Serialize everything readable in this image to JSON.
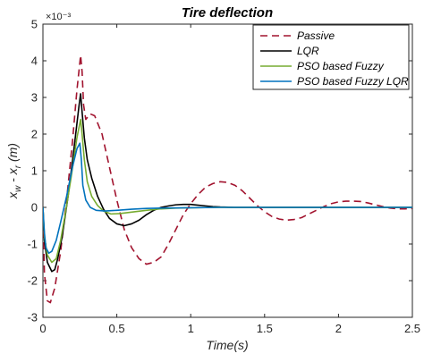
{
  "chart_data": {
    "type": "line",
    "title": "Tire deflection",
    "xlabel": "Time(s)",
    "ylabel": {
      "main_1": "x",
      "sub_1": "w",
      "mid": " - x",
      "sub_2": "r",
      "unit": " (m)"
    },
    "y_scale_label": "×10⁻³",
    "xlim": [
      0,
      2.5
    ],
    "ylim": [
      -3,
      5
    ],
    "x_ticks": [
      0,
      0.5,
      1,
      1.5,
      2,
      2.5
    ],
    "x_tick_labels": [
      "0",
      "0.5",
      "1",
      "1.5",
      "2",
      "2.5"
    ],
    "y_ticks": [
      -3,
      -2,
      -1,
      0,
      1,
      2,
      3,
      4,
      5
    ],
    "y_tick_labels": [
      "-3",
      "-2",
      "-1",
      "0",
      "1",
      "2",
      "3",
      "4",
      "5"
    ],
    "grid": false,
    "legend_position": "top-right",
    "series": [
      {
        "name": "Passive",
        "color": "#a2142f",
        "dash": "8,5",
        "points": [
          [
            0,
            0
          ],
          [
            0.01,
            -1.8
          ],
          [
            0.03,
            -2.55
          ],
          [
            0.05,
            -2.6
          ],
          [
            0.08,
            -2.2
          ],
          [
            0.12,
            -1.2
          ],
          [
            0.16,
            0.2
          ],
          [
            0.2,
            1.8
          ],
          [
            0.23,
            3.2
          ],
          [
            0.255,
            4.15
          ],
          [
            0.265,
            3.7
          ],
          [
            0.275,
            2.8
          ],
          [
            0.29,
            2.4
          ],
          [
            0.32,
            2.55
          ],
          [
            0.35,
            2.5
          ],
          [
            0.4,
            2.0
          ],
          [
            0.45,
            1.1
          ],
          [
            0.5,
            0.2
          ],
          [
            0.55,
            -0.6
          ],
          [
            0.6,
            -1.1
          ],
          [
            0.65,
            -1.4
          ],
          [
            0.7,
            -1.55
          ],
          [
            0.75,
            -1.5
          ],
          [
            0.8,
            -1.35
          ],
          [
            0.85,
            -1.0
          ],
          [
            0.9,
            -0.6
          ],
          [
            0.95,
            -0.2
          ],
          [
            1.0,
            0.1
          ],
          [
            1.05,
            0.35
          ],
          [
            1.1,
            0.55
          ],
          [
            1.15,
            0.65
          ],
          [
            1.2,
            0.7
          ],
          [
            1.25,
            0.68
          ],
          [
            1.3,
            0.6
          ],
          [
            1.35,
            0.45
          ],
          [
            1.4,
            0.25
          ],
          [
            1.45,
            0.05
          ],
          [
            1.5,
            -0.12
          ],
          [
            1.55,
            -0.25
          ],
          [
            1.6,
            -0.32
          ],
          [
            1.65,
            -0.35
          ],
          [
            1.7,
            -0.33
          ],
          [
            1.75,
            -0.28
          ],
          [
            1.8,
            -0.18
          ],
          [
            1.85,
            -0.08
          ],
          [
            1.9,
            0.02
          ],
          [
            1.95,
            0.1
          ],
          [
            2.0,
            0.15
          ],
          [
            2.05,
            0.17
          ],
          [
            2.1,
            0.17
          ],
          [
            2.15,
            0.16
          ],
          [
            2.2,
            0.12
          ],
          [
            2.25,
            0.07
          ],
          [
            2.3,
            0.02
          ],
          [
            2.35,
            -0.02
          ],
          [
            2.4,
            -0.04
          ],
          [
            2.45,
            -0.04
          ],
          [
            2.5,
            -0.03
          ]
        ]
      },
      {
        "name": "LQR",
        "color": "#000000",
        "dash": "",
        "points": [
          [
            0,
            0
          ],
          [
            0.01,
            -0.9
          ],
          [
            0.03,
            -1.5
          ],
          [
            0.06,
            -1.75
          ],
          [
            0.08,
            -1.7
          ],
          [
            0.1,
            -1.4
          ],
          [
            0.13,
            -0.8
          ],
          [
            0.17,
            0.3
          ],
          [
            0.21,
            1.6
          ],
          [
            0.245,
            2.8
          ],
          [
            0.255,
            3.1
          ],
          [
            0.265,
            2.6
          ],
          [
            0.28,
            1.9
          ],
          [
            0.3,
            1.3
          ],
          [
            0.33,
            0.8
          ],
          [
            0.37,
            0.3
          ],
          [
            0.41,
            -0.05
          ],
          [
            0.45,
            -0.3
          ],
          [
            0.5,
            -0.45
          ],
          [
            0.55,
            -0.5
          ],
          [
            0.6,
            -0.45
          ],
          [
            0.65,
            -0.35
          ],
          [
            0.7,
            -0.2
          ],
          [
            0.75,
            -0.08
          ],
          [
            0.8,
            0.0
          ],
          [
            0.85,
            0.04
          ],
          [
            0.9,
            0.07
          ],
          [
            0.95,
            0.08
          ],
          [
            1.0,
            0.08
          ],
          [
            1.05,
            0.06
          ],
          [
            1.1,
            0.04
          ],
          [
            1.15,
            0.02
          ],
          [
            1.2,
            0.01
          ],
          [
            1.3,
            0.0
          ],
          [
            1.5,
            0.0
          ],
          [
            2.5,
            0.0
          ]
        ]
      },
      {
        "name": "PSO based Fuzzy",
        "color": "#77ac30",
        "dash": "",
        "points": [
          [
            0,
            0
          ],
          [
            0.01,
            -0.8
          ],
          [
            0.03,
            -1.3
          ],
          [
            0.06,
            -1.5
          ],
          [
            0.09,
            -1.4
          ],
          [
            0.12,
            -0.9
          ],
          [
            0.15,
            -0.2
          ],
          [
            0.19,
            0.8
          ],
          [
            0.23,
            1.9
          ],
          [
            0.255,
            2.4
          ],
          [
            0.265,
            2.0
          ],
          [
            0.28,
            1.3
          ],
          [
            0.3,
            0.7
          ],
          [
            0.33,
            0.3
          ],
          [
            0.37,
            0.05
          ],
          [
            0.41,
            -0.1
          ],
          [
            0.46,
            -0.18
          ],
          [
            0.52,
            -0.17
          ],
          [
            0.6,
            -0.13
          ],
          [
            0.7,
            -0.08
          ],
          [
            0.8,
            -0.04
          ],
          [
            0.9,
            -0.02
          ],
          [
            1.0,
            -0.01
          ],
          [
            1.2,
            0.0
          ],
          [
            2.5,
            0.0
          ]
        ]
      },
      {
        "name": "PSO based Fuzzy LQR",
        "color": "#0072bd",
        "dash": "",
        "points": [
          [
            0,
            0
          ],
          [
            0.01,
            -0.7
          ],
          [
            0.02,
            -1.1
          ],
          [
            0.04,
            -1.25
          ],
          [
            0.06,
            -1.2
          ],
          [
            0.09,
            -0.9
          ],
          [
            0.12,
            -0.4
          ],
          [
            0.16,
            0.3
          ],
          [
            0.2,
            1.1
          ],
          [
            0.23,
            1.6
          ],
          [
            0.25,
            1.75
          ],
          [
            0.26,
            1.3
          ],
          [
            0.27,
            0.6
          ],
          [
            0.29,
            0.2
          ],
          [
            0.32,
            0.0
          ],
          [
            0.36,
            -0.08
          ],
          [
            0.42,
            -0.1
          ],
          [
            0.5,
            -0.08
          ],
          [
            0.6,
            -0.05
          ],
          [
            0.7,
            -0.03
          ],
          [
            0.8,
            -0.02
          ],
          [
            1.0,
            -0.01
          ],
          [
            1.2,
            0.0
          ],
          [
            2.5,
            0.0
          ]
        ]
      }
    ]
  }
}
